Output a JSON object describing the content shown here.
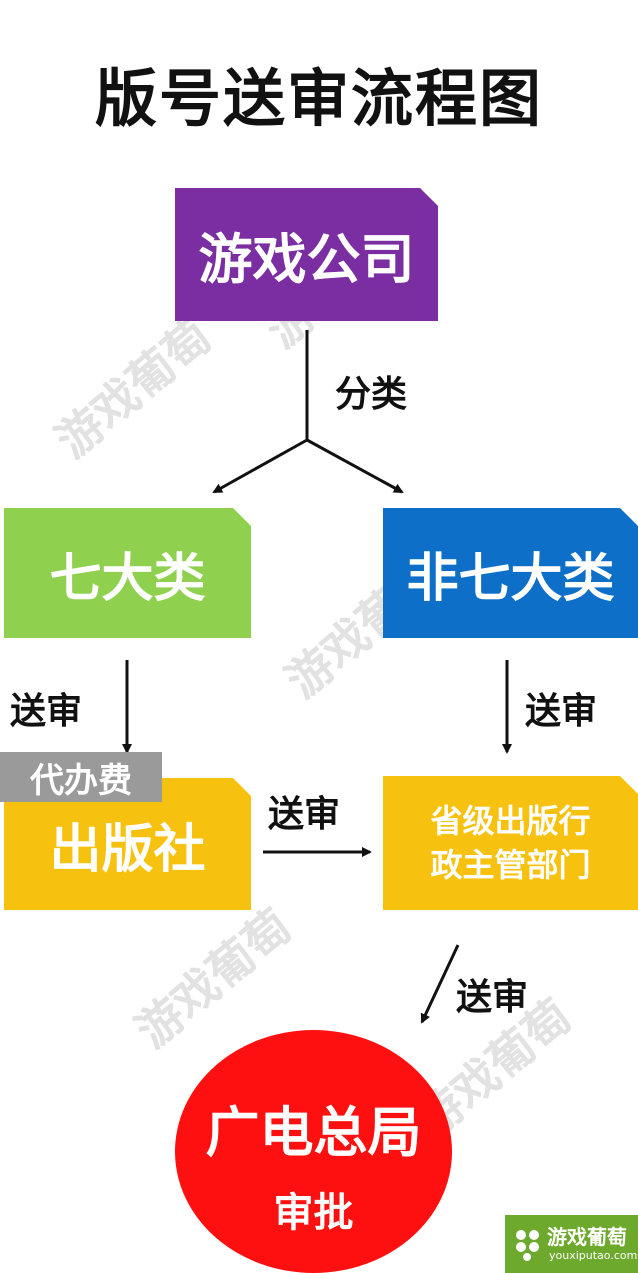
{
  "title": "版号送审流程图",
  "nodes": {
    "company": "游戏公司",
    "seven": "七大类",
    "non_seven": "非七大类",
    "publisher": "出版社",
    "province_line1": "省级出版行",
    "province_line2": "政主管部门",
    "sapprft": "广电总局",
    "sapprft_sub": "审批"
  },
  "edges": {
    "classify": "分类",
    "send_left": "送审",
    "send_right": "送审",
    "send_mid": "送审",
    "send_bottom": "送审"
  },
  "badge": {
    "fee": "代办费"
  },
  "watermark": {
    "text": "游戏葡萄"
  },
  "logo": {
    "cn": "游戏葡萄",
    "en": "youxiputao.com"
  },
  "colors": {
    "company": "#7a2ea1",
    "seven": "#8fd14f",
    "non_seven": "#0e6fc9",
    "publisher": "#f7c20f",
    "province": "#f7c20f",
    "sapprft": "#ff1010",
    "logo": "#6da92c"
  }
}
